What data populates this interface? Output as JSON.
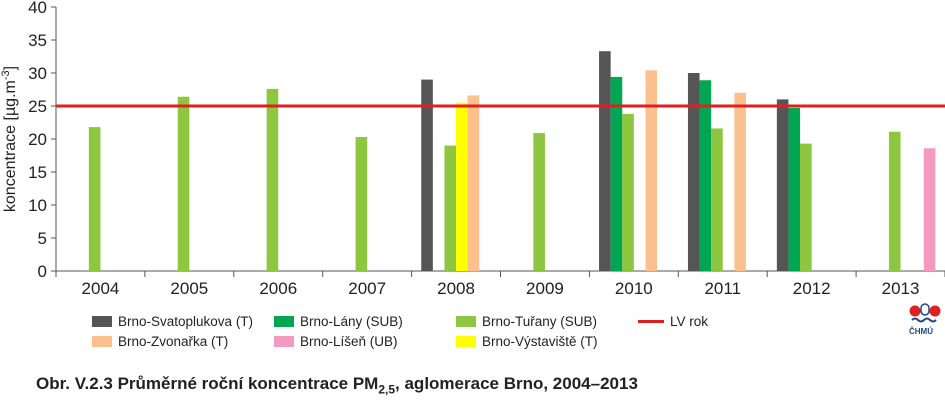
{
  "chart_data": {
    "type": "bar",
    "ylabel_main": "koncentrace [µg.m",
    "ylabel_sup": "-3",
    "ylabel_end": "]",
    "ylim": [
      0,
      40
    ],
    "yticks": [
      0,
      5,
      10,
      15,
      20,
      25,
      30,
      35,
      40
    ],
    "categories": [
      "2004",
      "2005",
      "2006",
      "2007",
      "2008",
      "2009",
      "2010",
      "2011",
      "2012",
      "2013"
    ],
    "grid": false,
    "limit_line": {
      "name": "LV rok",
      "value": 25,
      "color": "#e0201e"
    },
    "series": [
      {
        "name": "Brno-Svatoplukova (T)",
        "color": "#555555",
        "values": [
          null,
          null,
          null,
          null,
          29.0,
          null,
          33.3,
          30.0,
          26.0,
          null
        ]
      },
      {
        "name": "Brno-Lány (SUB)",
        "color": "#00a651",
        "values": [
          null,
          null,
          null,
          null,
          null,
          null,
          29.4,
          28.9,
          24.7,
          null
        ]
      },
      {
        "name": "Brno-Tuřany (SUB)",
        "color": "#8dc63f",
        "values": [
          21.8,
          26.4,
          27.6,
          20.3,
          19.0,
          20.9,
          23.8,
          21.6,
          19.3,
          21.1
        ]
      },
      {
        "name": "Brno-Výstaviště (T)",
        "color": "#ffff00",
        "values": [
          null,
          null,
          null,
          null,
          25.5,
          null,
          null,
          null,
          null,
          null
        ]
      },
      {
        "name": "Brno-Zvonařka (T)",
        "color": "#fbc08e",
        "values": [
          null,
          null,
          null,
          null,
          26.6,
          null,
          30.4,
          27.0,
          null,
          null
        ]
      },
      {
        "name": "Brno-Líšeň (UB)",
        "color": "#f49ac1",
        "values": [
          null,
          null,
          null,
          null,
          null,
          null,
          null,
          null,
          null,
          18.6
        ]
      }
    ]
  },
  "legend": {
    "items": [
      {
        "label": "Brno-Svatoplukova (T)",
        "color": "#555555",
        "kind": "box"
      },
      {
        "label": "Brno-Lány (SUB)",
        "color": "#00a651",
        "kind": "box"
      },
      {
        "label": "Brno-Tuřany (SUB)",
        "color": "#8dc63f",
        "kind": "box"
      },
      {
        "label": "LV rok",
        "color": "#e0201e",
        "kind": "line"
      },
      {
        "label": "Brno-Zvonařka (T)",
        "color": "#fbc08e",
        "kind": "box"
      },
      {
        "label": "Brno-Líšeň (UB)",
        "color": "#f49ac1",
        "kind": "box"
      },
      {
        "label": "Brno-Výstaviště (T)",
        "color": "#ffff00",
        "kind": "box"
      }
    ]
  },
  "logo": {
    "text": "ČHMÚ"
  },
  "caption": {
    "prefix": "Obr. V.2.3  Průměrné roční koncentrace PM",
    "sub": "2,5",
    "suffix": ", aglomerace Brno, 2004–2013"
  }
}
